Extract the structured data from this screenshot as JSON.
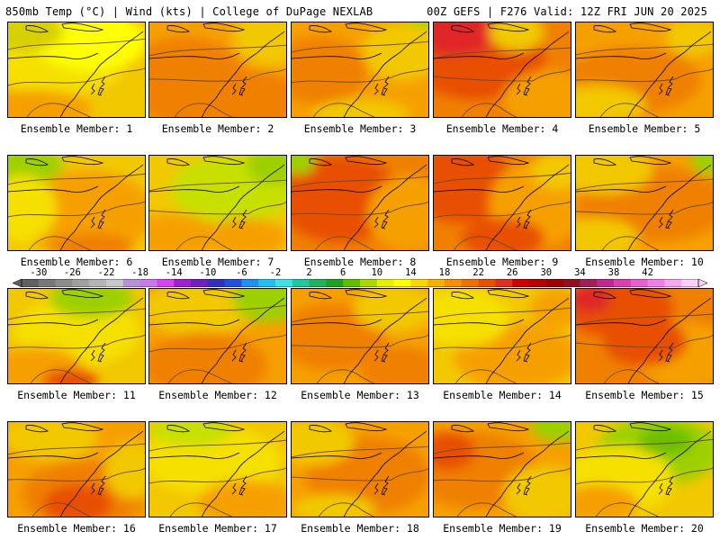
{
  "header": {
    "left": "850mb Temp (°C) | Wind (kts) | College of DuPage NEXLAB",
    "right": "00Z GEFS | F276 Valid: 12Z FRI JUN 20 2025"
  },
  "member_prefix": "Ensemble Member:",
  "members": [
    {
      "label": "Ensemble Member: 1",
      "base": "#f2c800",
      "blobs": [
        [
          "#f5e000",
          0.35,
          0.4,
          0.5,
          0.35
        ],
        [
          "#f6a000",
          0.2,
          0.9,
          0.4,
          0.2
        ],
        [
          "#ffff00",
          0.6,
          0.2,
          0.4,
          0.3
        ],
        [
          "#d8d000",
          0.1,
          0.1,
          0.3,
          0.2
        ]
      ]
    },
    {
      "label": "Ensemble Member: 2",
      "base": "#f6a000",
      "blobs": [
        [
          "#f08000",
          0.25,
          0.6,
          0.45,
          0.45
        ],
        [
          "#f2c800",
          0.9,
          0.15,
          0.3,
          0.3
        ],
        [
          "#f08000",
          0.75,
          0.8,
          0.35,
          0.3
        ]
      ]
    },
    {
      "label": "Ensemble Member: 3",
      "base": "#f6a000",
      "blobs": [
        [
          "#9ed000",
          0.95,
          0.1,
          0.15,
          0.25
        ],
        [
          "#f2c800",
          0.8,
          0.3,
          0.3,
          0.3
        ],
        [
          "#f08000",
          0.2,
          0.5,
          0.35,
          0.35
        ],
        [
          "#f2c800",
          0.5,
          0.95,
          0.35,
          0.15
        ]
      ]
    },
    {
      "label": "Ensemble Member: 4",
      "base": "#f08000",
      "blobs": [
        [
          "#e85000",
          0.3,
          0.35,
          0.5,
          0.45
        ],
        [
          "#e02828",
          0.15,
          0.1,
          0.3,
          0.25
        ],
        [
          "#f6a000",
          0.85,
          0.8,
          0.35,
          0.3
        ],
        [
          "#f2c800",
          0.6,
          0.1,
          0.2,
          0.2
        ]
      ]
    },
    {
      "label": "Ensemble Member: 5",
      "base": "#f6a000",
      "blobs": [
        [
          "#f08000",
          0.4,
          0.6,
          0.5,
          0.35
        ],
        [
          "#f2c800",
          0.15,
          0.85,
          0.35,
          0.2
        ],
        [
          "#f2c800",
          0.85,
          0.15,
          0.2,
          0.2
        ]
      ]
    },
    {
      "label": "Ensemble Member: 6",
      "base": "#f2c800",
      "blobs": [
        [
          "#f6a000",
          0.55,
          0.6,
          0.5,
          0.45
        ],
        [
          "#9ed000",
          0.1,
          0.1,
          0.3,
          0.2
        ],
        [
          "#f5e000",
          0.1,
          0.55,
          0.25,
          0.35
        ],
        [
          "#f08000",
          0.6,
          0.95,
          0.3,
          0.15
        ]
      ]
    },
    {
      "label": "Ensemble Member: 7",
      "base": "#f2c800",
      "blobs": [
        [
          "#c8e000",
          0.6,
          0.35,
          0.45,
          0.35
        ],
        [
          "#f6a000",
          0.15,
          0.85,
          0.35,
          0.25
        ],
        [
          "#f6a000",
          0.7,
          0.85,
          0.3,
          0.2
        ],
        [
          "#9ed000",
          0.9,
          0.1,
          0.2,
          0.2
        ]
      ]
    },
    {
      "label": "Ensemble Member: 8",
      "base": "#f08000",
      "blobs": [
        [
          "#e85000",
          0.35,
          0.45,
          0.45,
          0.45
        ],
        [
          "#f6a000",
          0.85,
          0.6,
          0.3,
          0.4
        ],
        [
          "#9ed000",
          0.05,
          0.05,
          0.12,
          0.15
        ]
      ]
    },
    {
      "label": "Ensemble Member: 9",
      "base": "#f08000",
      "blobs": [
        [
          "#e85000",
          0.2,
          0.3,
          0.4,
          0.4
        ],
        [
          "#f6a000",
          0.75,
          0.5,
          0.35,
          0.45
        ],
        [
          "#f2c800",
          0.9,
          0.15,
          0.2,
          0.2
        ],
        [
          "#e85000",
          0.5,
          0.85,
          0.3,
          0.2
        ]
      ]
    },
    {
      "label": "Ensemble Member: 10",
      "base": "#f6a000",
      "blobs": [
        [
          "#f08000",
          0.55,
          0.5,
          0.55,
          0.4
        ],
        [
          "#f2c800",
          0.2,
          0.15,
          0.35,
          0.25
        ],
        [
          "#9ed000",
          0.95,
          0.05,
          0.12,
          0.15
        ],
        [
          "#f2c800",
          0.15,
          0.85,
          0.3,
          0.2
        ]
      ]
    },
    {
      "label": "Ensemble Member: 11",
      "base": "#f2c800",
      "blobs": [
        [
          "#f5e000",
          0.5,
          0.45,
          0.45,
          0.35
        ],
        [
          "#9ed000",
          0.6,
          0.1,
          0.3,
          0.2
        ],
        [
          "#f6a000",
          0.2,
          0.85,
          0.35,
          0.25
        ],
        [
          "#e85000",
          0.45,
          0.95,
          0.2,
          0.12
        ]
      ]
    },
    {
      "label": "Ensemble Member: 12",
      "base": "#f6a000",
      "blobs": [
        [
          "#f2c800",
          0.35,
          0.2,
          0.4,
          0.3
        ],
        [
          "#9ed000",
          0.85,
          0.1,
          0.25,
          0.25
        ],
        [
          "#f08000",
          0.4,
          0.8,
          0.45,
          0.35
        ]
      ]
    },
    {
      "label": "Ensemble Member: 13",
      "base": "#f6a000",
      "blobs": [
        [
          "#f08000",
          0.3,
          0.5,
          0.4,
          0.35
        ],
        [
          "#f2c800",
          0.75,
          0.2,
          0.3,
          0.25
        ],
        [
          "#f08000",
          0.8,
          0.85,
          0.3,
          0.25
        ]
      ]
    },
    {
      "label": "Ensemble Member: 14",
      "base": "#f2c800",
      "blobs": [
        [
          "#f6a000",
          0.6,
          0.7,
          0.45,
          0.35
        ],
        [
          "#f5e000",
          0.2,
          0.3,
          0.35,
          0.3
        ],
        [
          "#f6a000",
          0.9,
          0.2,
          0.2,
          0.2
        ]
      ]
    },
    {
      "label": "Ensemble Member: 15",
      "base": "#f08000",
      "blobs": [
        [
          "#e85000",
          0.3,
          0.2,
          0.4,
          0.3
        ],
        [
          "#f6a000",
          0.8,
          0.7,
          0.35,
          0.35
        ],
        [
          "#e02828",
          0.1,
          0.1,
          0.15,
          0.15
        ],
        [
          "#e85000",
          0.5,
          0.55,
          0.3,
          0.25
        ]
      ]
    },
    {
      "label": "Ensemble Member: 16",
      "base": "#f6a000",
      "blobs": [
        [
          "#f08000",
          0.55,
          0.75,
          0.45,
          0.35
        ],
        [
          "#e85000",
          0.5,
          0.85,
          0.25,
          0.2
        ],
        [
          "#f2c800",
          0.3,
          0.15,
          0.35,
          0.25
        ],
        [
          "#f2c800",
          0.9,
          0.5,
          0.2,
          0.3
        ]
      ]
    },
    {
      "label": "Ensemble Member: 17",
      "base": "#f2c800",
      "blobs": [
        [
          "#f5e000",
          0.45,
          0.4,
          0.5,
          0.35
        ],
        [
          "#c8e000",
          0.3,
          0.1,
          0.3,
          0.15
        ],
        [
          "#f6a000",
          0.7,
          0.85,
          0.35,
          0.25
        ]
      ]
    },
    {
      "label": "Ensemble Member: 18",
      "base": "#f6a000",
      "blobs": [
        [
          "#f08000",
          0.55,
          0.55,
          0.45,
          0.4
        ],
        [
          "#f2c800",
          0.15,
          0.2,
          0.3,
          0.25
        ],
        [
          "#f2c800",
          0.3,
          0.9,
          0.3,
          0.15
        ]
      ]
    },
    {
      "label": "Ensemble Member: 19",
      "base": "#f6a000",
      "blobs": [
        [
          "#f08000",
          0.3,
          0.5,
          0.45,
          0.4
        ],
        [
          "#e85000",
          0.1,
          0.3,
          0.2,
          0.2
        ],
        [
          "#9ed000",
          0.9,
          0.05,
          0.2,
          0.15
        ],
        [
          "#f2c800",
          0.8,
          0.75,
          0.3,
          0.3
        ]
      ]
    },
    {
      "label": "Ensemble Member: 20",
      "base": "#f2c800",
      "blobs": [
        [
          "#9ed000",
          0.6,
          0.3,
          0.45,
          0.35
        ],
        [
          "#f5e000",
          0.3,
          0.6,
          0.4,
          0.35
        ],
        [
          "#f6a000",
          0.15,
          0.85,
          0.3,
          0.2
        ],
        [
          "#6cbf00",
          0.65,
          0.2,
          0.2,
          0.15
        ]
      ]
    }
  ],
  "colorbar": {
    "ticks": [
      "-30",
      "-26",
      "-22",
      "-18",
      "-14",
      "-10",
      "-6",
      "-2",
      "2",
      "6",
      "10",
      "14",
      "18",
      "22",
      "26",
      "30",
      "34",
      "38",
      "42"
    ],
    "colors": [
      "#606060",
      "#787878",
      "#8c8c8c",
      "#a0a0a0",
      "#b4b4b4",
      "#c8c8c8",
      "#b890d8",
      "#c878e8",
      "#d840f0",
      "#a020d0",
      "#7020c0",
      "#3030c0",
      "#2050e0",
      "#2090f0",
      "#20c0f0",
      "#40e0e8",
      "#20c8a0",
      "#20b060",
      "#20a020",
      "#60c000",
      "#a8d800",
      "#e8f000",
      "#ffff00",
      "#f8d800",
      "#f6b000",
      "#f69000",
      "#f07000",
      "#e85000",
      "#e03020",
      "#d00000",
      "#b80000",
      "#a00000",
      "#901020",
      "#a0205a",
      "#c02890",
      "#d840b0",
      "#e860d0",
      "#f080e8",
      "#f8a8f0",
      "#fcd0f8"
    ]
  }
}
